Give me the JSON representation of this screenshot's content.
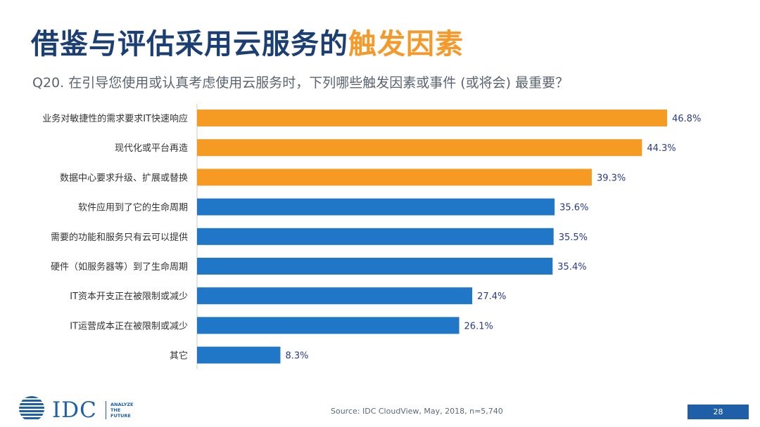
{
  "slide": {
    "title_main": "借鉴与评估采用云服务的",
    "title_highlight": "触发因素",
    "subtitle": "Q20. 在引导您使用或认真考虑使用云服务时，下列哪些触发因素或事件 (或将会) 最重要？",
    "source": "Source: IDC CloudView, May, 2018, n=5,740",
    "page_number": "28",
    "logo_text": "IDC",
    "tagline": [
      "ANALYZE",
      "THE",
      "FUTURE"
    ]
  },
  "colors": {
    "highlight": "#f59a23",
    "normal": "#2077c7",
    "title": "#1b3f73",
    "value_label": "#2a3a8c"
  },
  "chart_data": {
    "type": "bar",
    "orientation": "horizontal",
    "categories": [
      "业务对敏捷性的需求要求IT快速响应",
      "现代化或平台再造",
      "数据中心要求升级、扩展或替换",
      "软件应用到了它的生命周期",
      "需要的功能和服务只有云可以提供",
      "硬件（如服务器等）到了生命周期",
      "IT资本开支正在被限制或减少",
      "IT运营成本正在被限制或减少",
      "其它"
    ],
    "values": [
      46.8,
      44.3,
      39.3,
      35.6,
      35.5,
      35.4,
      27.4,
      26.1,
      8.3
    ],
    "value_labels": [
      "46.8%",
      "44.3%",
      "39.3%",
      "35.6%",
      "35.5%",
      "35.4%",
      "27.4%",
      "26.1%",
      "8.3%"
    ],
    "highlighted": [
      true,
      true,
      true,
      false,
      false,
      false,
      false,
      false,
      false
    ],
    "xlim": [
      0,
      50
    ],
    "unit": "%"
  }
}
